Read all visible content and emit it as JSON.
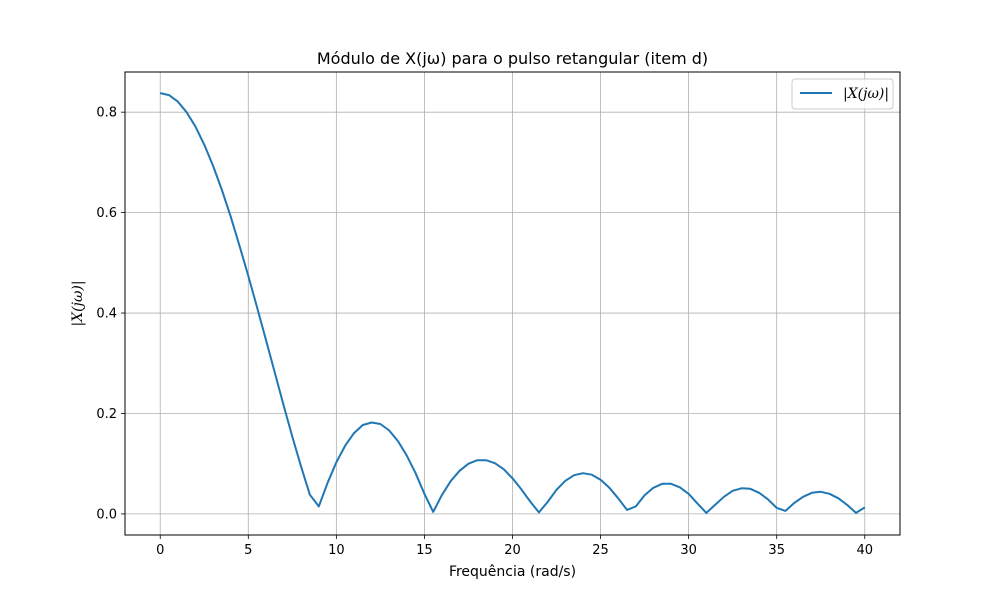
{
  "chart_data": {
    "type": "line",
    "title": "Módulo de X(jω) para o pulso retangular (item d)",
    "xlabel": "Frequência (rad/s)",
    "ylabel": "|X(jω)|",
    "xlim": [
      -2,
      42
    ],
    "ylim": [
      -0.042,
      0.88
    ],
    "xticks": [
      0,
      5,
      10,
      15,
      20,
      25,
      30,
      35,
      40
    ],
    "xtick_labels": [
      "0",
      "5",
      "10",
      "15",
      "20",
      "25",
      "30",
      "35",
      "40"
    ],
    "yticks": [
      0.0,
      0.2,
      0.4,
      0.6,
      0.8
    ],
    "ytick_labels": [
      "0.0",
      "0.2",
      "0.4",
      "0.6",
      "0.8"
    ],
    "grid": true,
    "legend_position": "top-right",
    "series": [
      {
        "name": "|X(jω)|",
        "color": "#1f77b4",
        "x": [
          0,
          0.5,
          1,
          1.5,
          2,
          2.5,
          3,
          3.5,
          4,
          4.5,
          5,
          5.5,
          6,
          6.5,
          7,
          7.5,
          8,
          8.5,
          9,
          9.5,
          10,
          10.5,
          11,
          11.5,
          12,
          12.5,
          13,
          13.5,
          14,
          14.5,
          15,
          15.5,
          16,
          16.5,
          17,
          17.5,
          18,
          18.5,
          19,
          19.5,
          20,
          20.5,
          21,
          21.5,
          22,
          22.5,
          23,
          23.5,
          24,
          24.5,
          25,
          25.5,
          26,
          26.5,
          27,
          27.5,
          28,
          28.5,
          29,
          29.5,
          30,
          30.5,
          31,
          31.5,
          32,
          32.5,
          33,
          33.5,
          34,
          34.5,
          35,
          35.5,
          36,
          36.5,
          37,
          37.5,
          38,
          38.5,
          39,
          39.5,
          40
        ],
        "y": [
          0.838,
          0.834,
          0.821,
          0.8,
          0.771,
          0.735,
          0.693,
          0.645,
          0.592,
          0.534,
          0.474,
          0.411,
          0.347,
          0.282,
          0.217,
          0.154,
          0.094,
          0.038,
          0.015,
          0.062,
          0.103,
          0.136,
          0.161,
          0.177,
          0.182,
          0.179,
          0.166,
          0.145,
          0.116,
          0.081,
          0.04,
          0.004,
          0.038,
          0.066,
          0.086,
          0.1,
          0.107,
          0.107,
          0.101,
          0.089,
          0.071,
          0.049,
          0.025,
          0.003,
          0.024,
          0.048,
          0.066,
          0.077,
          0.081,
          0.078,
          0.068,
          0.052,
          0.031,
          0.008,
          0.015,
          0.037,
          0.052,
          0.06,
          0.06,
          0.053,
          0.04,
          0.021,
          0.002,
          0.018,
          0.034,
          0.046,
          0.051,
          0.05,
          0.042,
          0.029,
          0.012,
          0.006,
          0.022,
          0.034,
          0.042,
          0.044,
          0.04,
          0.031,
          0.018,
          0.002,
          0.013
        ]
      }
    ]
  }
}
